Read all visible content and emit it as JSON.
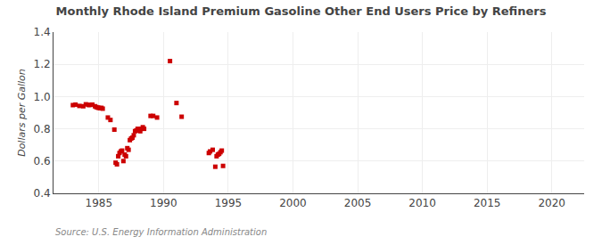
{
  "chart_data": {
    "type": "scatter",
    "title": "Monthly Rhode Island Premium Gasoline Other End Users Price by Refiners",
    "ylabel": "Dollars per Gallon",
    "annotations": [
      "Source: U.S. Energy Information Administration"
    ],
    "color": "#cc0000",
    "marker": "square",
    "grid": true,
    "xlim": [
      1981.5,
      2022.5
    ],
    "ylim": [
      0.4,
      1.4
    ],
    "xticks": [
      1985,
      1990,
      1995,
      2000,
      2005,
      2010,
      2015,
      2020
    ],
    "yticks": [
      0.4,
      0.6,
      0.8,
      {
        "value": 1.0,
        "label": "1.0"
      },
      1.2,
      1.4
    ],
    "x": [
      1983.0,
      1983.2,
      1983.5,
      1983.8,
      1984.0,
      1984.2,
      1984.3,
      1984.5,
      1984.7,
      1984.8,
      1984.9,
      1985.0,
      1985.1,
      1985.2,
      1985.3,
      1985.7,
      1985.9,
      1986.2,
      1986.3,
      1986.4,
      1986.5,
      1986.6,
      1986.7,
      1986.8,
      1986.9,
      1987.0,
      1987.1,
      1987.2,
      1987.3,
      1987.4,
      1987.5,
      1987.6,
      1987.7,
      1987.8,
      1987.9,
      1988.0,
      1988.1,
      1988.2,
      1988.3,
      1988.4,
      1988.5,
      1989.0,
      1989.2,
      1989.5,
      1990.5,
      1991.0,
      1991.4,
      1993.5,
      1993.6,
      1993.8,
      1994.0,
      1994.1,
      1994.2,
      1994.3,
      1994.4,
      1994.5,
      1994.6
    ],
    "values": [
      0.947,
      0.95,
      0.942,
      0.94,
      0.952,
      0.948,
      0.948,
      0.95,
      0.94,
      0.935,
      0.932,
      0.93,
      0.928,
      0.93,
      0.925,
      0.87,
      0.855,
      0.795,
      0.59,
      0.58,
      0.63,
      0.65,
      0.66,
      0.665,
      0.6,
      0.64,
      0.63,
      0.68,
      0.67,
      0.73,
      0.74,
      0.745,
      0.76,
      0.785,
      0.79,
      0.8,
      0.79,
      0.785,
      0.8,
      0.81,
      0.8,
      0.88,
      0.88,
      0.87,
      1.22,
      0.96,
      0.875,
      0.65,
      0.66,
      0.67,
      0.565,
      0.63,
      0.64,
      0.645,
      0.655,
      0.665,
      0.57
    ]
  }
}
